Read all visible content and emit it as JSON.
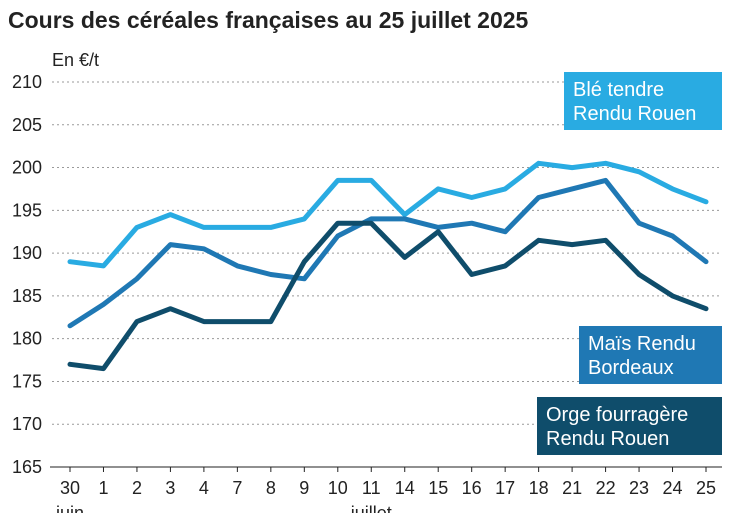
{
  "title": "Cours des céréales françaises au 25 juillet 2025",
  "chart_data": {
    "type": "line",
    "title": "Cours des céréales françaises au 25 juillet 2025",
    "ylabel": "En €/t",
    "xlabel": "",
    "ylim": [
      165,
      210
    ],
    "yticks": [
      165,
      170,
      175,
      180,
      185,
      190,
      195,
      200,
      205,
      210
    ],
    "categories": [
      "30",
      "1",
      "2",
      "3",
      "4",
      "7",
      "8",
      "9",
      "10",
      "11",
      "14",
      "15",
      "16",
      "17",
      "18",
      "21",
      "22",
      "23",
      "24",
      "25"
    ],
    "month_labels": [
      {
        "label": "juin",
        "index": 0
      },
      {
        "label": "juillet",
        "index": 9
      }
    ],
    "grid": true,
    "series": [
      {
        "name": "Blé tendre Rendu Rouen",
        "label_lines": [
          "Blé tendre",
          "Rendu Rouen"
        ],
        "color": "#29abe2",
        "values": [
          189,
          188.5,
          193,
          194.5,
          193,
          193,
          193,
          194,
          198.5,
          198.5,
          194.5,
          197.5,
          196.5,
          197.5,
          200.5,
          200,
          200.5,
          199.5,
          197.5,
          196
        ]
      },
      {
        "name": "Maïs Rendu Bordeaux",
        "label_lines": [
          "Maïs Rendu",
          "Bordeaux"
        ],
        "color": "#1f78b4",
        "values": [
          181.5,
          184,
          187,
          191,
          190.5,
          188.5,
          187.5,
          187,
          192,
          194,
          194,
          193,
          193.5,
          192.5,
          196.5,
          197.5,
          198.5,
          193.5,
          192,
          189
        ]
      },
      {
        "name": "Orge fourragère Rendu Rouen",
        "label_lines": [
          "Orge fourragère",
          "Rendu Rouen"
        ],
        "color": "#0f4d6b",
        "values": [
          177,
          176.5,
          182,
          183.5,
          182,
          182,
          182,
          189,
          193.5,
          193.5,
          189.5,
          192.5,
          187.5,
          188.5,
          191.5,
          191,
          191.5,
          187.5,
          185,
          183.5
        ]
      }
    ]
  }
}
